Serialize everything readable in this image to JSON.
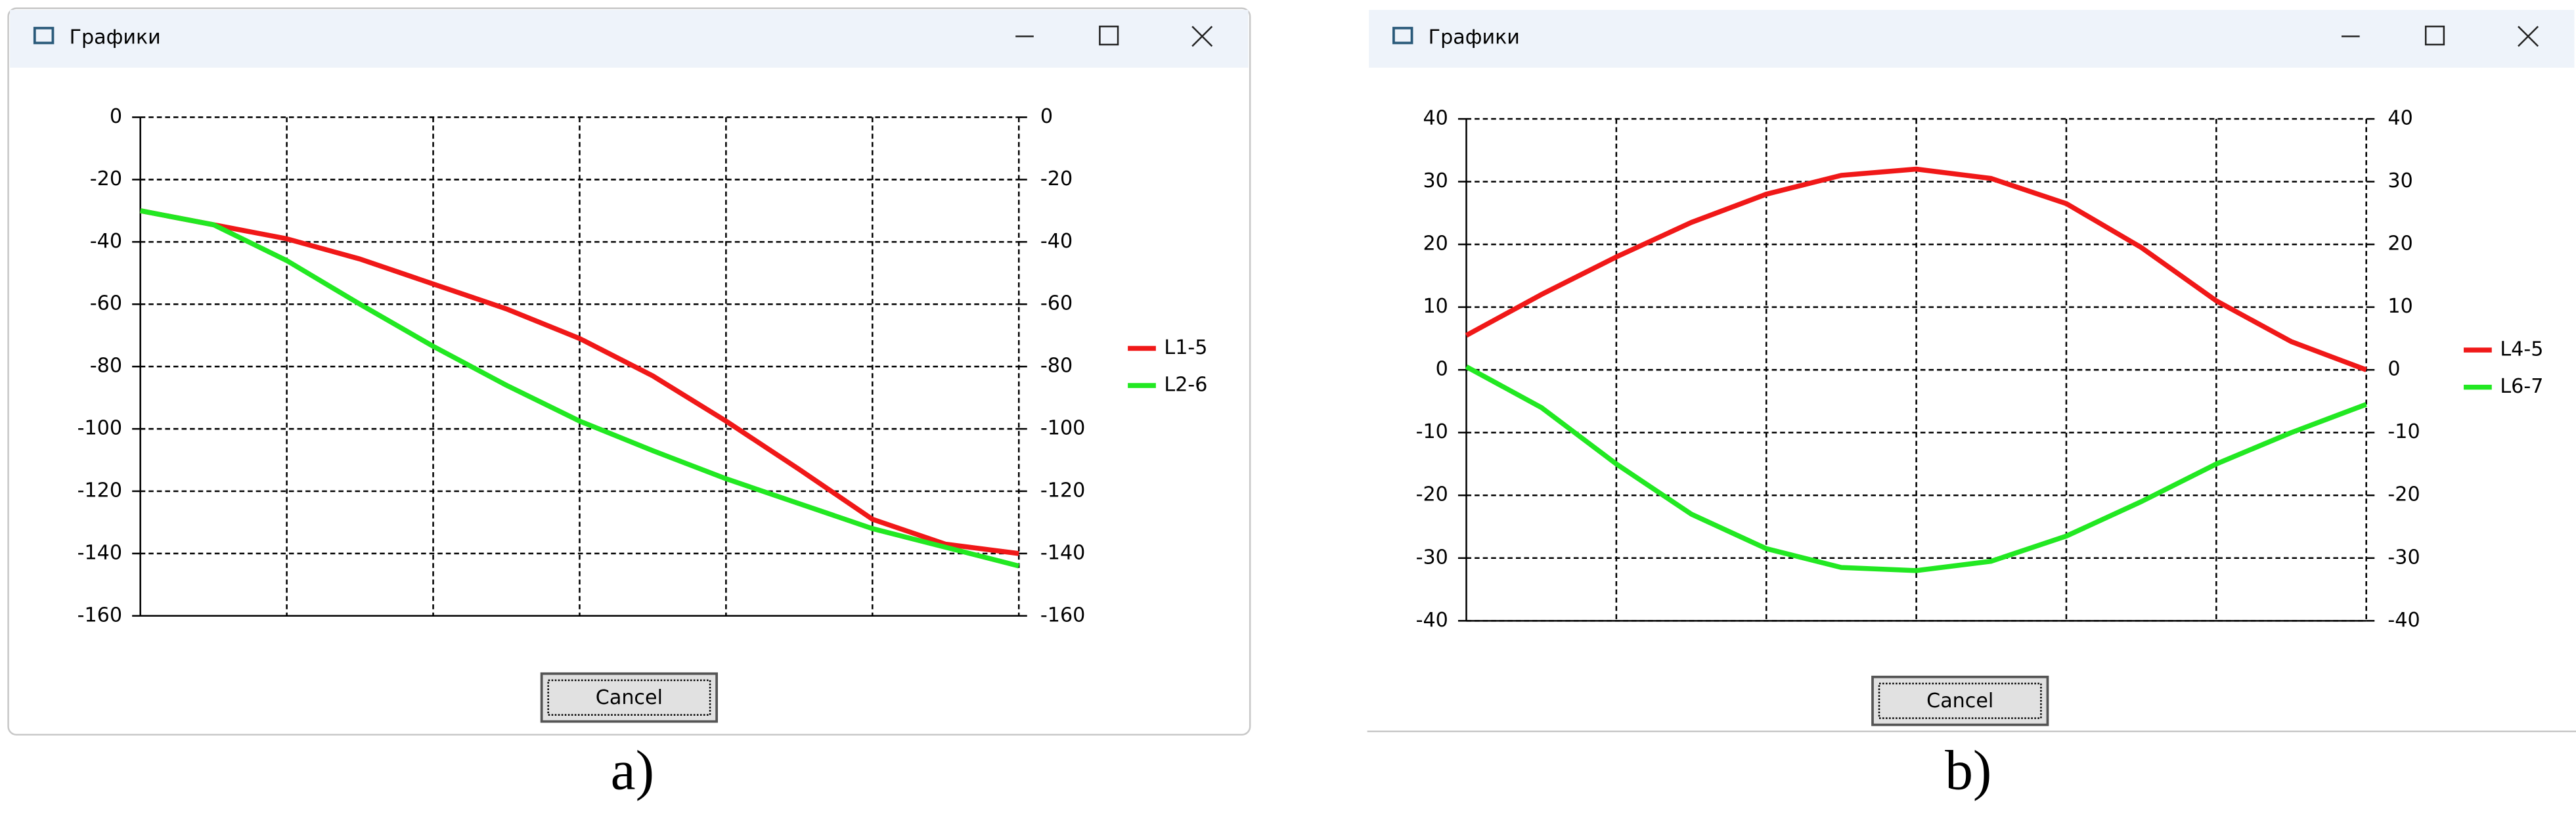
{
  "windows": [
    {
      "title": "Графики",
      "button": "Cancel",
      "caption": "a)"
    },
    {
      "title": "Графики",
      "button": "Cancel",
      "caption": "b)"
    }
  ],
  "chart_data": [
    {
      "type": "line",
      "x": [
        0,
        0.5,
        1,
        1.5,
        2,
        2.5,
        3,
        3.5,
        4,
        4.5,
        5,
        5.5,
        6
      ],
      "xlim": [
        0,
        6
      ],
      "series": [
        {
          "name": "L1-5",
          "color": "#f01818",
          "values": [
            -30,
            -34.5,
            -39,
            -45.5,
            -53.5,
            -61.5,
            -71,
            -83,
            -97.5,
            -113,
            -129,
            -137,
            -140
          ]
        },
        {
          "name": "L2-6",
          "color": "#22e822",
          "values": [
            -30,
            -34.5,
            -46,
            -60,
            -73.5,
            -86,
            -97.5,
            -107,
            -116,
            -124,
            -132,
            -138,
            -144
          ]
        }
      ],
      "ylim": [
        -160,
        0
      ],
      "yticks": [
        0,
        -20,
        -40,
        -60,
        -80,
        -100,
        -120,
        -140,
        -160
      ],
      "y2lim": [
        -160,
        0
      ],
      "y2ticks": [
        0,
        -20,
        -40,
        -60,
        -80,
        -100,
        -120,
        -140,
        -160
      ],
      "grid": true,
      "legend": "right"
    },
    {
      "type": "line",
      "x": [
        0,
        0.5,
        1,
        1.5,
        2,
        2.5,
        3,
        3.5,
        4,
        4.5,
        5,
        5.5,
        6
      ],
      "xlim": [
        0,
        6
      ],
      "series": [
        {
          "name": "L4-5",
          "color": "#f01818",
          "values": [
            5.5,
            12,
            18,
            23.5,
            28,
            31,
            32,
            30.5,
            26.5,
            19.5,
            11,
            4.5,
            0
          ]
        },
        {
          "name": "L6-7",
          "color": "#22e822",
          "values": [
            0.5,
            -6,
            -15,
            -23,
            -28.5,
            -31.5,
            -32,
            -30.5,
            -26.5,
            -21,
            -15,
            -10,
            -5.5
          ]
        }
      ],
      "ylim": [
        -40,
        40
      ],
      "yticks": [
        40,
        30,
        20,
        10,
        0,
        -10,
        -20,
        -30,
        -40
      ],
      "y2lim": [
        -40,
        40
      ],
      "y2ticks": [
        40,
        30,
        20,
        10,
        0,
        -10,
        -20,
        -30,
        -40
      ],
      "grid": true,
      "legend": "right"
    }
  ]
}
